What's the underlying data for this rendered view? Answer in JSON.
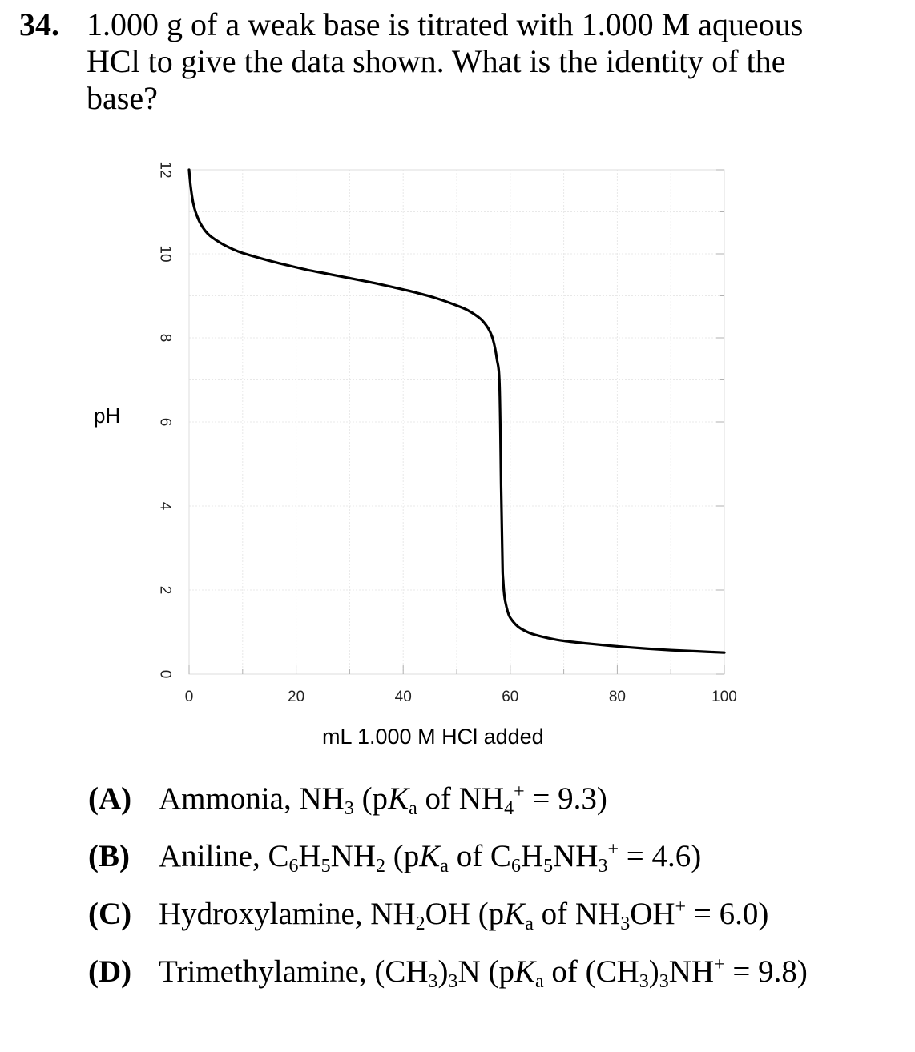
{
  "question": {
    "number": "34.",
    "lines": [
      "1.000 g of a weak base is titrated with 1.000 M aqueous",
      "HCl to give the data shown.  What is the identity of the",
      "base?"
    ]
  },
  "chart_data": {
    "type": "line",
    "title": "",
    "xlabel": "mL 1.000 M HCl added",
    "ylabel": "pH",
    "xlim": [
      0,
      100
    ],
    "ylim": [
      0,
      12
    ],
    "x_ticks": [
      "0",
      "20",
      "40",
      "60",
      "80",
      "100"
    ],
    "y_ticks": [
      "0",
      "2",
      "4",
      "6",
      "8",
      "10",
      "12"
    ],
    "grid": true,
    "line_color": "#000000",
    "series": [
      {
        "x": [
          0,
          0.3,
          0.7,
          1.2,
          2,
          3,
          4,
          6,
          8,
          10,
          14,
          18,
          22,
          26,
          30,
          34,
          38,
          42,
          46,
          50,
          52,
          54,
          55,
          56,
          56.8,
          57.5,
          58,
          58.3,
          58.5,
          58.6,
          58.7,
          58.8,
          59,
          59.3,
          59.6,
          60,
          61,
          62,
          64,
          67,
          70,
          75,
          80,
          85,
          90,
          95,
          100
        ],
        "y": [
          12,
          11.6,
          11.25,
          11.0,
          10.75,
          10.55,
          10.42,
          10.25,
          10.12,
          10.02,
          9.87,
          9.74,
          9.62,
          9.52,
          9.42,
          9.32,
          9.21,
          9.09,
          8.95,
          8.77,
          8.66,
          8.5,
          8.38,
          8.2,
          7.95,
          7.5,
          6.9,
          4.5,
          3.0,
          2.4,
          2.2,
          2.0,
          1.78,
          1.6,
          1.46,
          1.34,
          1.18,
          1.08,
          0.96,
          0.86,
          0.79,
          0.72,
          0.66,
          0.61,
          0.57,
          0.54,
          0.51
        ]
      }
    ]
  },
  "choices": [
    {
      "letter": "(A)",
      "parts": [
        {
          "t": "Ammonia, NH"
        },
        {
          "t": "3",
          "sub": true
        },
        {
          "t": " (p"
        },
        {
          "t": "K",
          "i": true
        },
        {
          "t": "a",
          "sub": true
        },
        {
          "t": " of NH"
        },
        {
          "t": "4",
          "sub": true
        },
        {
          "t": "+",
          "sup": true
        },
        {
          "t": " = 9.3)"
        }
      ]
    },
    {
      "letter": "(B)",
      "parts": [
        {
          "t": "Aniline, C"
        },
        {
          "t": "6",
          "sub": true
        },
        {
          "t": "H"
        },
        {
          "t": "5",
          "sub": true
        },
        {
          "t": "NH"
        },
        {
          "t": "2",
          "sub": true
        },
        {
          "t": " (p"
        },
        {
          "t": "K",
          "i": true
        },
        {
          "t": "a",
          "sub": true
        },
        {
          "t": " of C"
        },
        {
          "t": "6",
          "sub": true
        },
        {
          "t": "H"
        },
        {
          "t": "5",
          "sub": true
        },
        {
          "t": "NH"
        },
        {
          "t": "3",
          "sub": true
        },
        {
          "t": "+",
          "sup": true
        },
        {
          "t": " = 4.6)"
        }
      ]
    },
    {
      "letter": "(C)",
      "parts": [
        {
          "t": "Hydroxylamine, NH"
        },
        {
          "t": "2",
          "sub": true
        },
        {
          "t": "OH (p"
        },
        {
          "t": "K",
          "i": true
        },
        {
          "t": "a",
          "sub": true
        },
        {
          "t": " of NH"
        },
        {
          "t": "3",
          "sub": true
        },
        {
          "t": "OH"
        },
        {
          "t": "+",
          "sup": true
        },
        {
          "t": " = 6.0)"
        }
      ]
    },
    {
      "letter": "(D)",
      "parts": [
        {
          "t": "Trimethylamine, (CH"
        },
        {
          "t": "3",
          "sub": true
        },
        {
          "t": ")"
        },
        {
          "t": "3",
          "sub": true
        },
        {
          "t": "N (p"
        },
        {
          "t": "K",
          "i": true
        },
        {
          "t": "a",
          "sub": true
        },
        {
          "t": " of (CH"
        },
        {
          "t": "3",
          "sub": true
        },
        {
          "t": ")"
        },
        {
          "t": "3",
          "sub": true
        },
        {
          "t": "NH"
        },
        {
          "t": "+",
          "sup": true
        },
        {
          "t": " = 9.8)"
        }
      ]
    }
  ]
}
